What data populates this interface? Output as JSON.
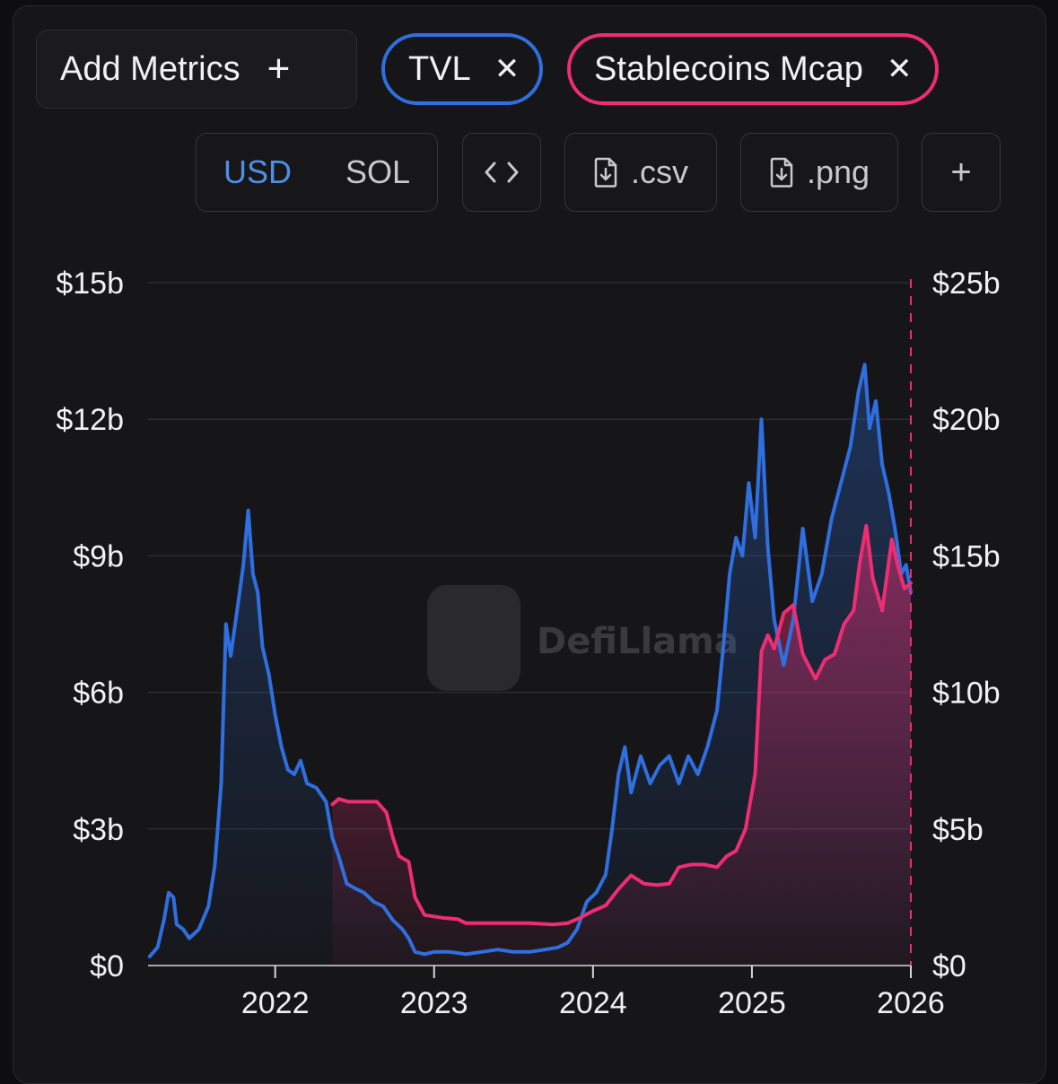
{
  "toolbar": {
    "add_metrics_label": "Add Metrics",
    "add_metrics_icon": "plus-icon",
    "chips": [
      {
        "label": "TVL",
        "color": "#2f6fe0",
        "icon": "close-icon"
      },
      {
        "label": "Stablecoins Mcap",
        "color": "#ee2d72",
        "icon": "close-icon"
      }
    ],
    "units": [
      {
        "label": "USD",
        "selected": true
      },
      {
        "label": "SOL",
        "selected": false
      }
    ],
    "embed_icon": "code-icon",
    "csv_label": ".csv",
    "png_label": ".png",
    "file_icon": "file-download-icon",
    "more_icon": "plus-icon"
  },
  "watermark": "DefiLlama",
  "chart_data": {
    "type": "line",
    "x_ticks": [
      "2022",
      "2023",
      "2024",
      "2025",
      "2026"
    ],
    "y_left_ticks": [
      "$0",
      "$3b",
      "$6b",
      "$9b",
      "$12b",
      "$15b"
    ],
    "y_right_ticks": [
      "$0",
      "$5b",
      "$10b",
      "$15b",
      "$20b",
      "$25b"
    ],
    "y_left_range": [
      0,
      15
    ],
    "y_right_range": [
      0,
      25
    ],
    "x_range": [
      2021.2,
      2026.0
    ],
    "grid": "horizontal",
    "unit": "USD billions",
    "series": [
      {
        "name": "TVL",
        "axis": "left",
        "color": "#2f6fe0",
        "points": [
          [
            2021.21,
            0.2
          ],
          [
            2021.26,
            0.4
          ],
          [
            2021.3,
            1.0
          ],
          [
            2021.33,
            1.6
          ],
          [
            2021.36,
            1.5
          ],
          [
            2021.38,
            0.9
          ],
          [
            2021.42,
            0.8
          ],
          [
            2021.46,
            0.6
          ],
          [
            2021.52,
            0.8
          ],
          [
            2021.58,
            1.3
          ],
          [
            2021.62,
            2.2
          ],
          [
            2021.66,
            4.0
          ],
          [
            2021.69,
            7.5
          ],
          [
            2021.72,
            6.8
          ],
          [
            2021.76,
            7.8
          ],
          [
            2021.8,
            8.8
          ],
          [
            2021.83,
            10.0
          ],
          [
            2021.86,
            8.6
          ],
          [
            2021.89,
            8.2
          ],
          [
            2021.92,
            7.0
          ],
          [
            2021.96,
            6.4
          ],
          [
            2022.0,
            5.5
          ],
          [
            2022.04,
            4.8
          ],
          [
            2022.08,
            4.3
          ],
          [
            2022.12,
            4.2
          ],
          [
            2022.16,
            4.5
          ],
          [
            2022.2,
            4.0
          ],
          [
            2022.26,
            3.9
          ],
          [
            2022.32,
            3.6
          ],
          [
            2022.36,
            2.8
          ],
          [
            2022.4,
            2.4
          ],
          [
            2022.45,
            1.8
          ],
          [
            2022.5,
            1.7
          ],
          [
            2022.56,
            1.6
          ],
          [
            2022.62,
            1.4
          ],
          [
            2022.68,
            1.3
          ],
          [
            2022.74,
            1.0
          ],
          [
            2022.8,
            0.8
          ],
          [
            2022.84,
            0.6
          ],
          [
            2022.88,
            0.3
          ],
          [
            2022.94,
            0.25
          ],
          [
            2023.0,
            0.3
          ],
          [
            2023.1,
            0.3
          ],
          [
            2023.2,
            0.25
          ],
          [
            2023.3,
            0.3
          ],
          [
            2023.4,
            0.35
          ],
          [
            2023.5,
            0.3
          ],
          [
            2023.6,
            0.3
          ],
          [
            2023.7,
            0.35
          ],
          [
            2023.78,
            0.4
          ],
          [
            2023.84,
            0.5
          ],
          [
            2023.9,
            0.8
          ],
          [
            2023.96,
            1.4
          ],
          [
            2024.02,
            1.6
          ],
          [
            2024.08,
            2.0
          ],
          [
            2024.12,
            3.0
          ],
          [
            2024.16,
            4.2
          ],
          [
            2024.2,
            4.8
          ],
          [
            2024.24,
            3.8
          ],
          [
            2024.3,
            4.6
          ],
          [
            2024.36,
            4.0
          ],
          [
            2024.42,
            4.4
          ],
          [
            2024.48,
            4.6
          ],
          [
            2024.54,
            4.0
          ],
          [
            2024.6,
            4.6
          ],
          [
            2024.66,
            4.2
          ],
          [
            2024.72,
            4.8
          ],
          [
            2024.78,
            5.6
          ],
          [
            2024.82,
            7.0
          ],
          [
            2024.86,
            8.6
          ],
          [
            2024.9,
            9.4
          ],
          [
            2024.94,
            9.0
          ],
          [
            2024.98,
            10.6
          ],
          [
            2025.02,
            9.4
          ],
          [
            2025.06,
            12.0
          ],
          [
            2025.1,
            9.2
          ],
          [
            2025.14,
            7.6
          ],
          [
            2025.2,
            6.6
          ],
          [
            2025.26,
            7.6
          ],
          [
            2025.32,
            9.6
          ],
          [
            2025.38,
            8.0
          ],
          [
            2025.44,
            8.6
          ],
          [
            2025.5,
            9.8
          ],
          [
            2025.56,
            10.6
          ],
          [
            2025.62,
            11.4
          ],
          [
            2025.67,
            12.6
          ],
          [
            2025.71,
            13.2
          ],
          [
            2025.74,
            11.8
          ],
          [
            2025.78,
            12.4
          ],
          [
            2025.82,
            11.0
          ],
          [
            2025.86,
            10.4
          ],
          [
            2025.9,
            9.6
          ],
          [
            2025.94,
            8.6
          ],
          [
            2025.97,
            8.8
          ],
          [
            2026.0,
            8.2
          ]
        ]
      },
      {
        "name": "Stablecoins Mcap",
        "axis": "right",
        "color": "#ee2d72",
        "points": [
          [
            2022.36,
            5.9
          ],
          [
            2022.4,
            6.1
          ],
          [
            2022.46,
            6.0
          ],
          [
            2022.56,
            6.0
          ],
          [
            2022.64,
            6.0
          ],
          [
            2022.7,
            5.6
          ],
          [
            2022.74,
            4.7
          ],
          [
            2022.78,
            4.0
          ],
          [
            2022.84,
            3.8
          ],
          [
            2022.88,
            2.5
          ],
          [
            2022.94,
            1.85
          ],
          [
            2023.05,
            1.75
          ],
          [
            2023.15,
            1.7
          ],
          [
            2023.2,
            1.55
          ],
          [
            2023.4,
            1.55
          ],
          [
            2023.6,
            1.55
          ],
          [
            2023.75,
            1.5
          ],
          [
            2023.84,
            1.55
          ],
          [
            2023.92,
            1.75
          ],
          [
            2024.0,
            2.0
          ],
          [
            2024.08,
            2.2
          ],
          [
            2024.16,
            2.8
          ],
          [
            2024.24,
            3.3
          ],
          [
            2024.32,
            3.0
          ],
          [
            2024.4,
            2.95
          ],
          [
            2024.48,
            3.0
          ],
          [
            2024.54,
            3.6
          ],
          [
            2024.62,
            3.7
          ],
          [
            2024.7,
            3.7
          ],
          [
            2024.78,
            3.6
          ],
          [
            2024.84,
            4.0
          ],
          [
            2024.9,
            4.2
          ],
          [
            2024.96,
            5.0
          ],
          [
            2025.02,
            7.0
          ],
          [
            2025.06,
            11.5
          ],
          [
            2025.1,
            12.1
          ],
          [
            2025.14,
            11.6
          ],
          [
            2025.2,
            12.9
          ],
          [
            2025.26,
            13.2
          ],
          [
            2025.32,
            11.4
          ],
          [
            2025.4,
            10.5
          ],
          [
            2025.46,
            11.2
          ],
          [
            2025.52,
            11.4
          ],
          [
            2025.58,
            12.5
          ],
          [
            2025.64,
            13.0
          ],
          [
            2025.68,
            14.8
          ],
          [
            2025.72,
            16.1
          ],
          [
            2025.76,
            14.2
          ],
          [
            2025.82,
            13.0
          ],
          [
            2025.88,
            15.6
          ],
          [
            2025.92,
            14.6
          ],
          [
            2025.96,
            13.8
          ],
          [
            2026.0,
            14.0
          ]
        ]
      }
    ]
  }
}
